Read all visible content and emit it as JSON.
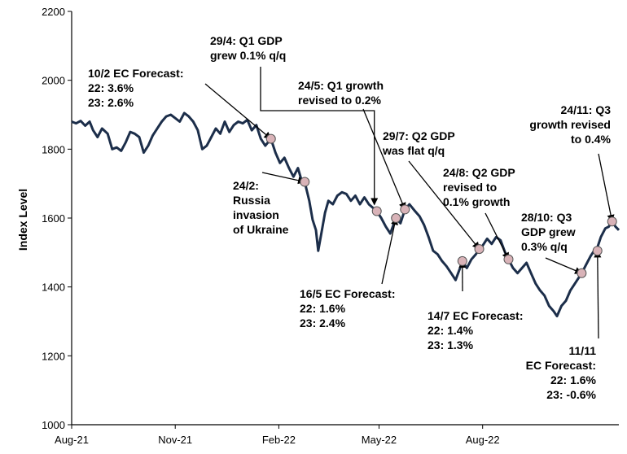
{
  "chart_data": {
    "type": "line",
    "title": "",
    "xlabel": "",
    "ylabel": "Index Level",
    "ylim": [
      1000,
      2200
    ],
    "yticks": [
      1000,
      1200,
      1400,
      1600,
      1800,
      2000,
      2200
    ],
    "xlim": [
      "2021-08-01",
      "2022-11-30"
    ],
    "xticks": [
      {
        "date": "2021-08-01",
        "label": "Aug-21"
      },
      {
        "date": "2021-11-01",
        "label": "Nov-21"
      },
      {
        "date": "2022-02-01",
        "label": "Feb-22"
      },
      {
        "date": "2022-05-01",
        "label": "May-22"
      },
      {
        "date": "2022-08-01",
        "label": "Aug-22"
      }
    ],
    "grid": false,
    "line_color": "#1c2e4a",
    "marker_color": "#d9b3b8",
    "series": [
      {
        "points": [
          [
            "2021-08-01",
            1880
          ],
          [
            "2021-08-05",
            1875
          ],
          [
            "2021-08-09",
            1882
          ],
          [
            "2021-08-13",
            1868
          ],
          [
            "2021-08-17",
            1880
          ],
          [
            "2021-08-20",
            1855
          ],
          [
            "2021-08-24",
            1835
          ],
          [
            "2021-08-28",
            1860
          ],
          [
            "2021-09-02",
            1845
          ],
          [
            "2021-09-06",
            1800
          ],
          [
            "2021-09-10",
            1805
          ],
          [
            "2021-09-14",
            1795
          ],
          [
            "2021-09-18",
            1820
          ],
          [
            "2021-09-22",
            1850
          ],
          [
            "2021-09-26",
            1845
          ],
          [
            "2021-09-30",
            1835
          ],
          [
            "2021-10-04",
            1790
          ],
          [
            "2021-10-08",
            1810
          ],
          [
            "2021-10-12",
            1840
          ],
          [
            "2021-10-16",
            1860
          ],
          [
            "2021-10-20",
            1880
          ],
          [
            "2021-10-24",
            1895
          ],
          [
            "2021-10-28",
            1900
          ],
          [
            "2021-11-01",
            1890
          ],
          [
            "2021-11-05",
            1880
          ],
          [
            "2021-11-09",
            1905
          ],
          [
            "2021-11-13",
            1895
          ],
          [
            "2021-11-17",
            1880
          ],
          [
            "2021-11-21",
            1855
          ],
          [
            "2021-11-25",
            1800
          ],
          [
            "2021-11-29",
            1810
          ],
          [
            "2021-12-03",
            1835
          ],
          [
            "2021-12-07",
            1860
          ],
          [
            "2021-12-11",
            1845
          ],
          [
            "2021-12-15",
            1880
          ],
          [
            "2021-12-19",
            1850
          ],
          [
            "2021-12-23",
            1870
          ],
          [
            "2021-12-27",
            1880
          ],
          [
            "2021-12-31",
            1875
          ],
          [
            "2022-01-04",
            1885
          ],
          [
            "2022-01-08",
            1855
          ],
          [
            "2022-01-12",
            1870
          ],
          [
            "2022-01-16",
            1830
          ],
          [
            "2022-01-20",
            1810
          ],
          [
            "2022-01-25",
            1830
          ],
          [
            "2022-01-29",
            1790
          ],
          [
            "2022-02-02",
            1760
          ],
          [
            "2022-02-06",
            1775
          ],
          [
            "2022-02-10",
            1745
          ],
          [
            "2022-02-14",
            1720
          ],
          [
            "2022-02-18",
            1745
          ],
          [
            "2022-02-22",
            1700
          ],
          [
            "2022-02-24",
            1705
          ],
          [
            "2022-02-28",
            1650
          ],
          [
            "2022-03-03",
            1595
          ],
          [
            "2022-03-06",
            1565
          ],
          [
            "2022-03-08",
            1505
          ],
          [
            "2022-03-11",
            1560
          ],
          [
            "2022-03-14",
            1615
          ],
          [
            "2022-03-17",
            1650
          ],
          [
            "2022-03-21",
            1640
          ],
          [
            "2022-03-25",
            1665
          ],
          [
            "2022-03-29",
            1675
          ],
          [
            "2022-04-02",
            1670
          ],
          [
            "2022-04-06",
            1650
          ],
          [
            "2022-04-10",
            1665
          ],
          [
            "2022-04-14",
            1640
          ],
          [
            "2022-04-18",
            1660
          ],
          [
            "2022-04-22",
            1640
          ],
          [
            "2022-04-29",
            1620
          ],
          [
            "2022-05-03",
            1600
          ],
          [
            "2022-05-07",
            1575
          ],
          [
            "2022-05-11",
            1555
          ],
          [
            "2022-05-16",
            1600
          ],
          [
            "2022-05-20",
            1585
          ],
          [
            "2022-05-24",
            1625
          ],
          [
            "2022-05-28",
            1640
          ],
          [
            "2022-06-02",
            1620
          ],
          [
            "2022-06-06",
            1605
          ],
          [
            "2022-06-10",
            1580
          ],
          [
            "2022-06-14",
            1545
          ],
          [
            "2022-06-18",
            1505
          ],
          [
            "2022-06-22",
            1495
          ],
          [
            "2022-06-26",
            1475
          ],
          [
            "2022-06-30",
            1460
          ],
          [
            "2022-07-04",
            1440
          ],
          [
            "2022-07-08",
            1420
          ],
          [
            "2022-07-12",
            1455
          ],
          [
            "2022-07-14",
            1475
          ],
          [
            "2022-07-18",
            1455
          ],
          [
            "2022-07-22",
            1480
          ],
          [
            "2022-07-26",
            1495
          ],
          [
            "2022-07-29",
            1510
          ],
          [
            "2022-08-01",
            1520
          ],
          [
            "2022-08-05",
            1540
          ],
          [
            "2022-08-09",
            1525
          ],
          [
            "2022-08-13",
            1545
          ],
          [
            "2022-08-17",
            1535
          ],
          [
            "2022-08-21",
            1500
          ],
          [
            "2022-08-24",
            1480
          ],
          [
            "2022-08-28",
            1455
          ],
          [
            "2022-09-01",
            1440
          ],
          [
            "2022-09-05",
            1455
          ],
          [
            "2022-09-09",
            1470
          ],
          [
            "2022-09-13",
            1440
          ],
          [
            "2022-09-17",
            1410
          ],
          [
            "2022-09-21",
            1390
          ],
          [
            "2022-09-25",
            1375
          ],
          [
            "2022-09-29",
            1345
          ],
          [
            "2022-10-03",
            1330
          ],
          [
            "2022-10-06",
            1315
          ],
          [
            "2022-10-10",
            1345
          ],
          [
            "2022-10-14",
            1360
          ],
          [
            "2022-10-18",
            1390
          ],
          [
            "2022-10-22",
            1410
          ],
          [
            "2022-10-28",
            1440
          ],
          [
            "2022-11-01",
            1465
          ],
          [
            "2022-11-05",
            1490
          ],
          [
            "2022-11-08",
            1505
          ],
          [
            "2022-11-11",
            1515
          ],
          [
            "2022-11-14",
            1545
          ],
          [
            "2022-11-18",
            1570
          ],
          [
            "2022-11-21",
            1575
          ],
          [
            "2022-11-24",
            1590
          ],
          [
            "2022-11-27",
            1575
          ],
          [
            "2022-11-30",
            1565
          ]
        ]
      }
    ],
    "annotations": [
      {
        "date": "2022-01-25",
        "value": 1830,
        "lines": [
          "10/2 EC Forecast:",
          "22: 3.6%",
          "23: 2.6%"
        ]
      },
      {
        "date": "2022-02-24",
        "value": 1705,
        "lines": [
          "24/2:",
          "Russia",
          "invasion",
          "of Ukraine"
        ]
      },
      {
        "date": "2022-04-29",
        "value": 1620,
        "lines": [
          "29/4: Q1 GDP",
          "grew 0.1% q/q"
        ]
      },
      {
        "date": "2022-05-16",
        "value": 1600,
        "lines": [
          "16/5 EC Forecast:",
          "22: 1.6%",
          "23: 2.4%"
        ]
      },
      {
        "date": "2022-05-24",
        "value": 1625,
        "lines": [
          "24/5: Q1 growth",
          "revised to 0.2%"
        ]
      },
      {
        "date": "2022-07-14",
        "value": 1475,
        "lines": [
          "14/7 EC Forecast:",
          "22: 1.4%",
          "23: 1.3%"
        ]
      },
      {
        "date": "2022-07-29",
        "value": 1510,
        "lines": [
          "29/7: Q2 GDP",
          "was flat q/q"
        ]
      },
      {
        "date": "2022-08-24",
        "value": 1480,
        "lines": [
          "24/8: Q2 GDP",
          "revised to",
          "0.1% growth"
        ]
      },
      {
        "date": "2022-10-28",
        "value": 1440,
        "lines": [
          "28/10: Q3",
          "GDP grew",
          "0.3% q/q"
        ]
      },
      {
        "date": "2022-11-11",
        "value": 1505,
        "lines": [
          "11/11",
          "EC Forecast:",
          "22: 1.6%",
          "23: -0.6%"
        ]
      },
      {
        "date": "2022-11-24",
        "value": 1590,
        "lines": [
          "24/11: Q3",
          "growth revised",
          "to 0.4%"
        ]
      }
    ]
  }
}
